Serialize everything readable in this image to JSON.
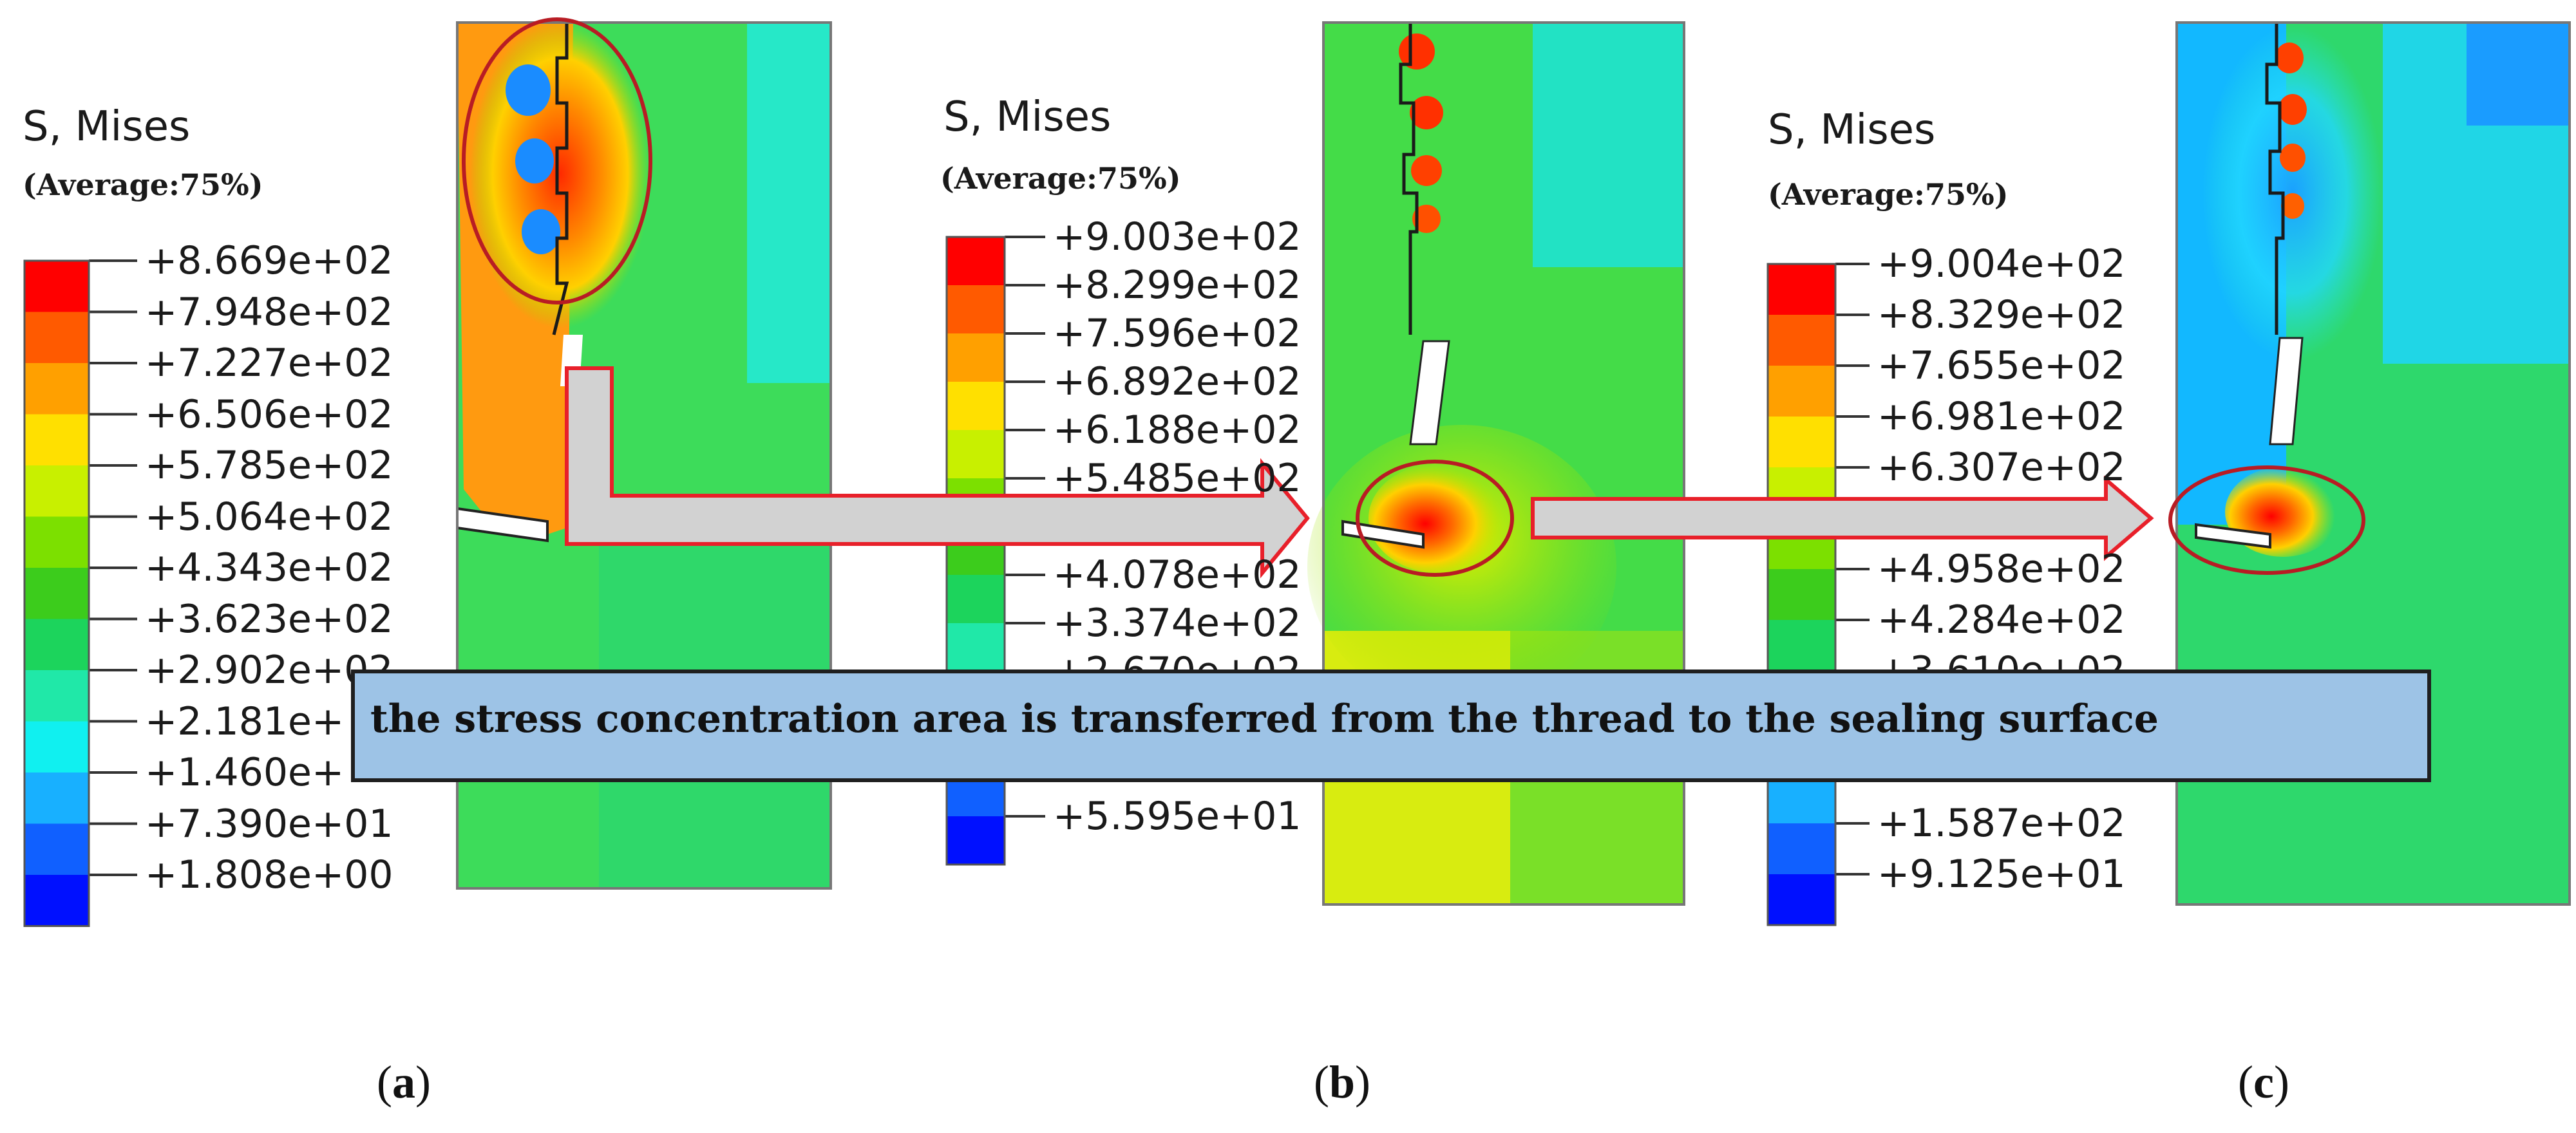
{
  "legend": {
    "title": "S, Mises",
    "subtitle": "(Average:75%)",
    "colors": [
      "#ff0000",
      "#ff5a00",
      "#ffa000",
      "#ffe000",
      "#c8f000",
      "#7ce000",
      "#3ccc1c",
      "#1cd45c",
      "#20e8a8",
      "#10f0f0",
      "#18b0ff",
      "#1060ff",
      "#0010ff"
    ]
  },
  "panels": [
    {
      "id": "a",
      "label": "a",
      "ticks": [
        "+8.669e+02",
        "+7.948e+02",
        "+7.227e+02",
        "+6.506e+02",
        "+5.785e+02",
        "+5.064e+02",
        "+4.343e+02",
        "+3.623e+02",
        "+2.902e+02",
        "+2.181e+",
        "+1.460e+",
        "+7.390e+01",
        "+1.808e+00"
      ]
    },
    {
      "id": "b",
      "label": "b",
      "ticks": [
        "+9.003e+02",
        "+8.299e+02",
        "+7.596e+02",
        "+6.892e+02",
        "+6.188e+02",
        "+5.485e+02",
        "",
        "+4.078e+02",
        "+3.374e+02",
        "+2.670e+02",
        "",
        "",
        "+5.595e+01"
      ]
    },
    {
      "id": "c",
      "label": "c",
      "ticks": [
        "+9.004e+02",
        "+8.329e+02",
        "+7.655e+02",
        "+6.981e+02",
        "+6.307e+02",
        "",
        "+4.958e+02",
        "+4.284e+02",
        "+3.610e+02",
        "",
        "",
        "+1.587e+02",
        "+9.125e+01"
      ]
    }
  ],
  "caption": "the stress concentration area is transferred from the thread to the sealing surface",
  "arrow_colors": {
    "fill": "#d2d2d2",
    "stroke": "#e8202a",
    "ellipse": "#b81c24"
  }
}
